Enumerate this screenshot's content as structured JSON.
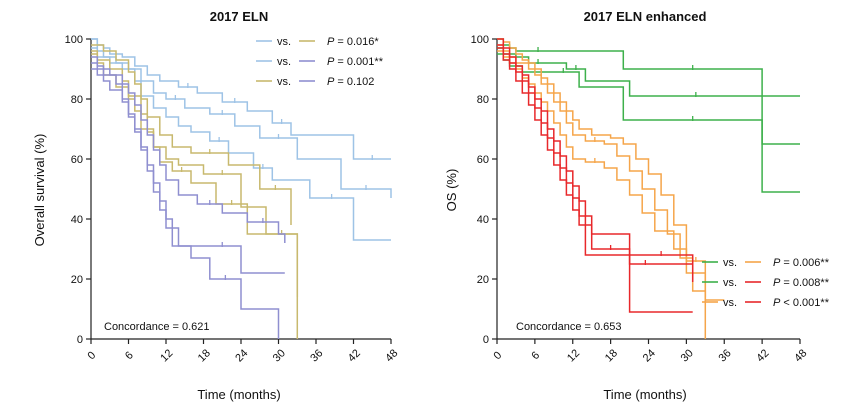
{
  "chart_data": [
    {
      "type": "line",
      "subtype": "kaplan-meier",
      "title": "2017 ELN",
      "xlabel": "Time (months)",
      "ylabel": "Overall survival (%)",
      "xlim": [
        0,
        48
      ],
      "ylim": [
        0,
        100
      ],
      "xticks": [
        0,
        6,
        12,
        18,
        24,
        30,
        36,
        42,
        48
      ],
      "yticks": [
        0,
        20,
        40,
        60,
        80,
        100
      ],
      "grid": false,
      "legend_position": "top-right",
      "annotation": "Concordance = 0.621",
      "legend": [
        {
          "left_color": "#9ec3e6",
          "vs": "vs.",
          "right_color": "#c8b96e",
          "p_prefix": "P",
          "p_rest": " = 0.016*"
        },
        {
          "left_color": "#9ec3e6",
          "vs": "vs.",
          "right_color": "#8f8fd0",
          "p_prefix": "P",
          "p_rest": " = 0.001**"
        },
        {
          "left_color": "#c8b96e",
          "vs": "vs.",
          "right_color": "#8f8fd0",
          "p_prefix": "P",
          "p_rest": " = 0.102"
        }
      ],
      "series": [
        {
          "color": "#9ec3e6",
          "x": [
            0,
            1,
            2,
            3,
            5,
            7,
            9,
            11,
            14,
            17,
            21,
            25,
            29,
            32,
            42,
            48
          ],
          "y": [
            100,
            98,
            97,
            95,
            94,
            91,
            88,
            86,
            84,
            82,
            79,
            76,
            72,
            68,
            60,
            60
          ]
        },
        {
          "color": "#9ec3e6",
          "x": [
            0,
            1,
            2,
            4,
            6,
            8,
            10,
            12,
            15,
            19,
            23,
            27,
            33,
            40,
            48
          ],
          "y": [
            100,
            96,
            94,
            92,
            90,
            86,
            82,
            80,
            77,
            75,
            71,
            67,
            60,
            50,
            47
          ]
        },
        {
          "color": "#9ec3e6",
          "x": [
            0,
            1,
            3,
            5,
            7,
            8,
            10,
            12,
            14,
            16,
            19,
            22,
            26,
            29,
            35,
            42,
            48
          ],
          "y": [
            97,
            94,
            92,
            90,
            86,
            81,
            77,
            74,
            71,
            69,
            66,
            62,
            57,
            53,
            47,
            33,
            33
          ]
        },
        {
          "color": "#c8b96e",
          "x": [
            0,
            2,
            4,
            6,
            7,
            8,
            9,
            11,
            13,
            16,
            22,
            27,
            32
          ],
          "y": [
            98,
            96,
            93,
            89,
            85,
            80,
            74,
            68,
            64,
            62,
            58,
            50,
            38
          ]
        },
        {
          "color": "#c8b96e",
          "x": [
            0,
            1,
            3,
            5,
            6,
            8,
            9,
            10,
            12,
            14,
            18,
            24,
            28,
            33
          ],
          "y": [
            96,
            93,
            90,
            86,
            81,
            75,
            69,
            64,
            60,
            58,
            55,
            44,
            35,
            0
          ]
        },
        {
          "color": "#c8b96e",
          "x": [
            0,
            1,
            2,
            4,
            6,
            7,
            8,
            10,
            11,
            13,
            16,
            20,
            25,
            33
          ],
          "y": [
            95,
            92,
            88,
            84,
            80,
            76,
            70,
            64,
            59,
            56,
            52,
            45,
            35,
            14
          ]
        },
        {
          "color": "#8f8fd0",
          "x": [
            0,
            1,
            3,
            5,
            6,
            7,
            8,
            9,
            10,
            11,
            12,
            14,
            17,
            21,
            25,
            30,
            31
          ],
          "y": [
            92,
            90,
            88,
            85,
            82,
            78,
            73,
            68,
            63,
            58,
            53,
            48,
            45,
            42,
            39,
            35,
            32
          ]
        },
        {
          "color": "#8f8fd0",
          "x": [
            0,
            1,
            2,
            4,
            5,
            6,
            7,
            8,
            9,
            10,
            11,
            12,
            13,
            18,
            24,
            31
          ],
          "y": [
            94,
            91,
            88,
            85,
            80,
            75,
            70,
            64,
            58,
            52,
            46,
            40,
            31,
            31,
            22,
            22
          ]
        },
        {
          "color": "#8f8fd0",
          "x": [
            0,
            1,
            2,
            3,
            5,
            6,
            7,
            8,
            9,
            10,
            11,
            12,
            14,
            16,
            19,
            24,
            30
          ],
          "y": [
            90,
            88,
            86,
            83,
            79,
            74,
            69,
            63,
            56,
            49,
            43,
            37,
            31,
            27,
            20,
            10,
            0
          ]
        }
      ]
    },
    {
      "type": "line",
      "subtype": "kaplan-meier",
      "title": "2017 ELN enhanced",
      "xlabel": "Time (months)",
      "ylabel": "OS (%)",
      "xlim": [
        0,
        48
      ],
      "ylim": [
        0,
        100
      ],
      "xticks": [
        0,
        6,
        12,
        18,
        24,
        30,
        36,
        42,
        48
      ],
      "yticks": [
        0,
        20,
        40,
        60,
        80,
        100
      ],
      "grid": false,
      "legend_position": "bottom-right",
      "annotation": "Concordance = 0.653",
      "legend": [
        {
          "left_color": "#3db04b",
          "vs": "vs.",
          "right_color": "#f5a54a",
          "p_prefix": "P",
          "p_rest": " = 0.006**"
        },
        {
          "left_color": "#3db04b",
          "vs": "vs.",
          "right_color": "#e8282b",
          "p_prefix": "P",
          "p_rest": " = 0.008**"
        },
        {
          "left_color": "#f5a54a",
          "vs": "vs.",
          "right_color": "#e8282b",
          "p_prefix": "P",
          "p_rest": " < 0.001**"
        }
      ],
      "series": [
        {
          "color": "#3db04b",
          "x": [
            0,
            1,
            2,
            3,
            5,
            8,
            20,
            42,
            48
          ],
          "y": [
            100,
            98,
            97,
            96,
            96,
            96,
            90,
            65,
            65
          ]
        },
        {
          "color": "#3db04b",
          "x": [
            0,
            1,
            3,
            5,
            8,
            11,
            14,
            21,
            42,
            48
          ],
          "y": [
            97,
            95,
            94,
            92,
            92,
            90,
            86,
            81,
            81,
            81
          ]
        },
        {
          "color": "#3db04b",
          "x": [
            0,
            1,
            2,
            4,
            8,
            13,
            20,
            42,
            48
          ],
          "y": [
            95,
            93,
            91,
            89,
            89,
            84,
            73,
            49,
            49
          ]
        },
        {
          "color": "#f5a54a",
          "x": [
            0,
            1,
            2,
            3,
            4,
            5,
            6,
            7,
            8,
            9,
            10,
            11,
            12,
            13,
            15,
            18,
            20,
            22,
            24,
            26,
            28,
            30,
            33,
            36
          ],
          "y": [
            100,
            99,
            97,
            95,
            93,
            92,
            90,
            87,
            85,
            82,
            79,
            76,
            73,
            70,
            68,
            67,
            65,
            60,
            55,
            48,
            38,
            26,
            13,
            13
          ]
        },
        {
          "color": "#f5a54a",
          "x": [
            0,
            1,
            2,
            3,
            5,
            6,
            7,
            8,
            9,
            10,
            11,
            12,
            14,
            17,
            19,
            21,
            23,
            25,
            27,
            29,
            31,
            33
          ],
          "y": [
            98,
            96,
            94,
            92,
            90,
            88,
            85,
            82,
            79,
            76,
            72,
            68,
            66,
            65,
            61,
            56,
            50,
            43,
            35,
            27,
            16,
            0
          ]
        },
        {
          "color": "#f5a54a",
          "x": [
            0,
            1,
            2,
            3,
            4,
            5,
            6,
            7,
            8,
            9,
            10,
            11,
            12,
            14,
            17,
            19,
            21,
            23,
            25,
            28,
            30,
            33
          ],
          "y": [
            96,
            94,
            92,
            90,
            87,
            85,
            82,
            79,
            76,
            72,
            68,
            64,
            60,
            59,
            57,
            53,
            48,
            42,
            36,
            30,
            22,
            14
          ]
        },
        {
          "color": "#e8282b",
          "x": [
            0,
            1,
            2,
            3,
            4,
            5,
            6,
            7,
            8,
            9,
            10,
            11,
            12,
            13,
            14,
            15,
            21,
            26,
            31
          ],
          "y": [
            100,
            97,
            94,
            91,
            88,
            84,
            80,
            76,
            70,
            66,
            61,
            56,
            51,
            46,
            41,
            35,
            25,
            25,
            25
          ]
        },
        {
          "color": "#e8282b",
          "x": [
            0,
            1,
            2,
            3,
            4,
            5,
            6,
            7,
            8,
            9,
            10,
            11,
            12,
            13,
            14,
            21,
            31
          ],
          "y": [
            98,
            95,
            92,
            89,
            86,
            82,
            77,
            72,
            67,
            62,
            57,
            52,
            47,
            41,
            28,
            28,
            19
          ]
        },
        {
          "color": "#e8282b",
          "x": [
            0,
            1,
            2,
            3,
            4,
            5,
            6,
            7,
            8,
            9,
            10,
            11,
            12,
            13,
            15,
            21,
            31
          ],
          "y": [
            97,
            93,
            90,
            86,
            82,
            78,
            73,
            68,
            63,
            58,
            53,
            48,
            43,
            38,
            30,
            9,
            9
          ]
        }
      ]
    }
  ]
}
